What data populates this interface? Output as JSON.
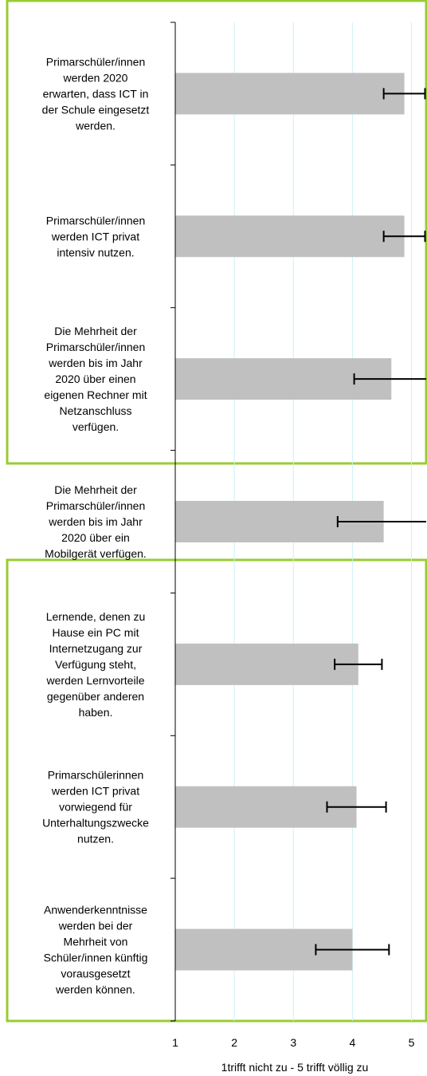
{
  "chart_data": {
    "type": "hbar",
    "xlabel": "1trifft nicht zu - 5 trifft völlig zu",
    "categories": [
      "Primarschüler/innen\nwerden 2020\nerwarten, dass ICT in\nder Schule eingesetzt\nwerden.",
      "Primarschüler/innen\nwerden ICT privat\nintensiv nutzen.",
      "Die Mehrheit der\nPrimarschüler/innen\nwerden bis im Jahr\n2020 über einen\neigenen Rechner mit\nNetzanschluss\nverfügen.",
      "Die Mehrheit der\nPrimarschüler/innen\nwerden bis im Jahr\n2020 über ein\nMobilgerät verfügen.",
      "Lernende, denen zu\nHause ein PC mit\nInternetzugang zur\nVerfügung steht,\nwerden Lernvorteile\ngegenüber anderen\nhaben.",
      "Primarschülerinnen\nwerden ICT privat\nvorwiegend für\nUnterhaltungszwecke\nnutzen.",
      "Anwenderkenntnisse\nwerden bei der\nMehrheit von\nSchüler/innen künftig\nvorausgesetzt\nwerden können."
    ],
    "values": [
      4.88,
      4.88,
      4.66,
      4.53,
      4.1,
      4.07,
      4.0
    ],
    "errors": [
      0.35,
      0.35,
      0.63,
      0.78,
      0.4,
      0.5,
      0.62
    ],
    "color": "#c0c0c0",
    "xlim": [
      1,
      5.25
    ],
    "xticks": [
      1,
      2,
      3,
      4,
      5
    ],
    "grid": true
  }
}
